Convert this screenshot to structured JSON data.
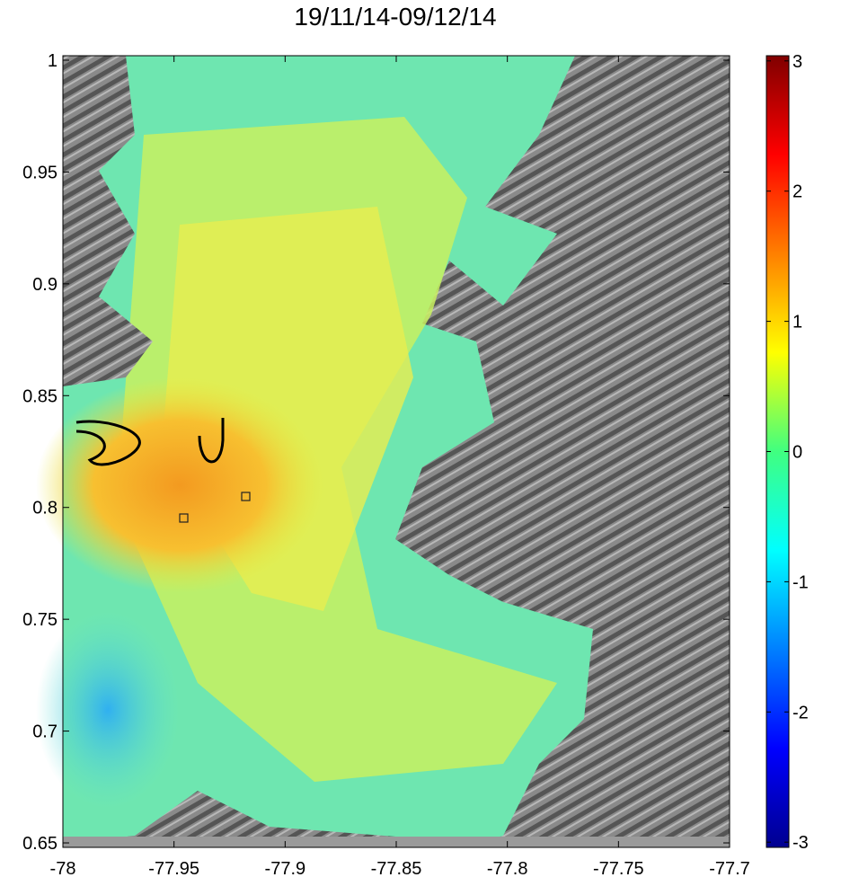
{
  "chart_data": {
    "type": "map",
    "title": "19/11/14-09/12/14",
    "xlim": [
      -78,
      -77.7
    ],
    "xticks": [
      -78,
      -77.95,
      -77.9,
      -77.85,
      -77.8,
      -77.75,
      -77.7
    ],
    "ylim": [
      0.648,
      1.002
    ],
    "yticks": [
      0.65,
      0.7,
      0.75,
      0.8,
      0.85,
      0.9,
      0.95,
      1
    ],
    "colorbar": {
      "lim": [
        -3.04,
        3.04
      ],
      "ticks": [
        -3,
        -2,
        -1,
        0,
        1,
        2,
        3
      ]
    }
  }
}
